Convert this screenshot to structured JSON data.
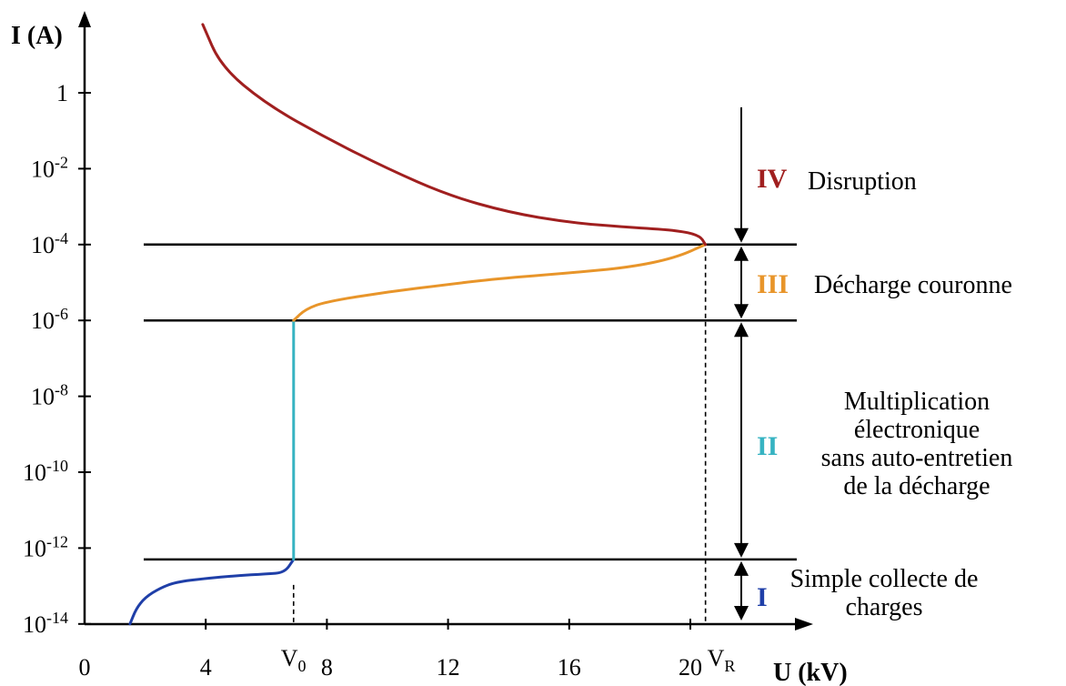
{
  "chart_data": {
    "type": "line",
    "xlabel": "U (kV)",
    "ylabel": "I (A)",
    "xlim": [
      0,
      24
    ],
    "ylim_log10": [
      -14,
      1
    ],
    "y_scale": "log",
    "x_ticks": [
      {
        "value": 0,
        "label": "0"
      },
      {
        "value": 4,
        "label": "4"
      },
      {
        "value": 8,
        "label": "8"
      },
      {
        "value": 12,
        "label": "12"
      },
      {
        "value": 16,
        "label": "16"
      },
      {
        "value": 20,
        "label": "20"
      }
    ],
    "y_ticks": [
      {
        "exp": 0,
        "base": "1",
        "sup": ""
      },
      {
        "exp": -2,
        "base": "10",
        "sup": "-2"
      },
      {
        "exp": -4,
        "base": "10",
        "sup": "-4"
      },
      {
        "exp": -6,
        "base": "10",
        "sup": "-6"
      },
      {
        "exp": -8,
        "base": "10",
        "sup": "-8"
      },
      {
        "exp": -10,
        "base": "10",
        "sup": "-10"
      },
      {
        "exp": -12,
        "base": "10",
        "sup": "-12"
      },
      {
        "exp": -14,
        "base": "10",
        "sup": "-14"
      }
    ],
    "markers": [
      {
        "base": "V",
        "sub": "0",
        "x": 6.9
      },
      {
        "base": "V",
        "sub": "R",
        "x": 20.5
      }
    ],
    "threshold_levels_log10": [
      -4.0,
      -6.0,
      -12.3
    ],
    "series": [
      {
        "color": "#1f3fa8",
        "points": [
          [
            1.5,
            -14.0
          ],
          [
            1.7,
            -13.6
          ],
          [
            2.0,
            -13.3
          ],
          [
            2.5,
            -13.05
          ],
          [
            3.0,
            -12.9
          ],
          [
            4.0,
            -12.8
          ],
          [
            5.0,
            -12.73
          ],
          [
            6.0,
            -12.68
          ],
          [
            6.6,
            -12.65
          ],
          [
            6.9,
            -12.3
          ]
        ]
      },
      {
        "color": "#36b3c2",
        "points": [
          [
            6.9,
            -12.3
          ],
          [
            6.9,
            -6.0
          ]
        ]
      },
      {
        "color": "#e8952a",
        "points": [
          [
            6.9,
            -6.0
          ],
          [
            7.3,
            -5.7
          ],
          [
            8.0,
            -5.5
          ],
          [
            10.0,
            -5.25
          ],
          [
            12.0,
            -5.05
          ],
          [
            13.6,
            -4.9
          ],
          [
            16.0,
            -4.75
          ],
          [
            18.0,
            -4.6
          ],
          [
            19.5,
            -4.35
          ],
          [
            20.5,
            -4.0
          ]
        ]
      },
      {
        "color": "#a01f1f",
        "points": [
          [
            20.5,
            -4.0
          ],
          [
            20.3,
            -3.75
          ],
          [
            19.5,
            -3.62
          ],
          [
            18.0,
            -3.55
          ],
          [
            16.0,
            -3.42
          ],
          [
            14.0,
            -3.15
          ],
          [
            12.0,
            -2.7
          ],
          [
            10.0,
            -2.0
          ],
          [
            8.0,
            -1.2
          ],
          [
            6.0,
            -0.3
          ],
          [
            4.5,
            0.7
          ],
          [
            3.9,
            1.8
          ]
        ]
      }
    ],
    "regions": [
      {
        "roman": "IV",
        "color": "#a01f1f",
        "name_lines": [
          "Disruption"
        ]
      },
      {
        "roman": "III",
        "color": "#e8952a",
        "name_lines": [
          "Décharge couronne"
        ]
      },
      {
        "roman": "II",
        "color": "#36b3c2",
        "name_lines": [
          "Multiplication",
          "électronique",
          "sans auto-entretien",
          "de la décharge"
        ]
      },
      {
        "roman": "I",
        "color": "#1f3fa8",
        "name_lines": [
          "Simple collecte de",
          "charges"
        ]
      }
    ]
  }
}
